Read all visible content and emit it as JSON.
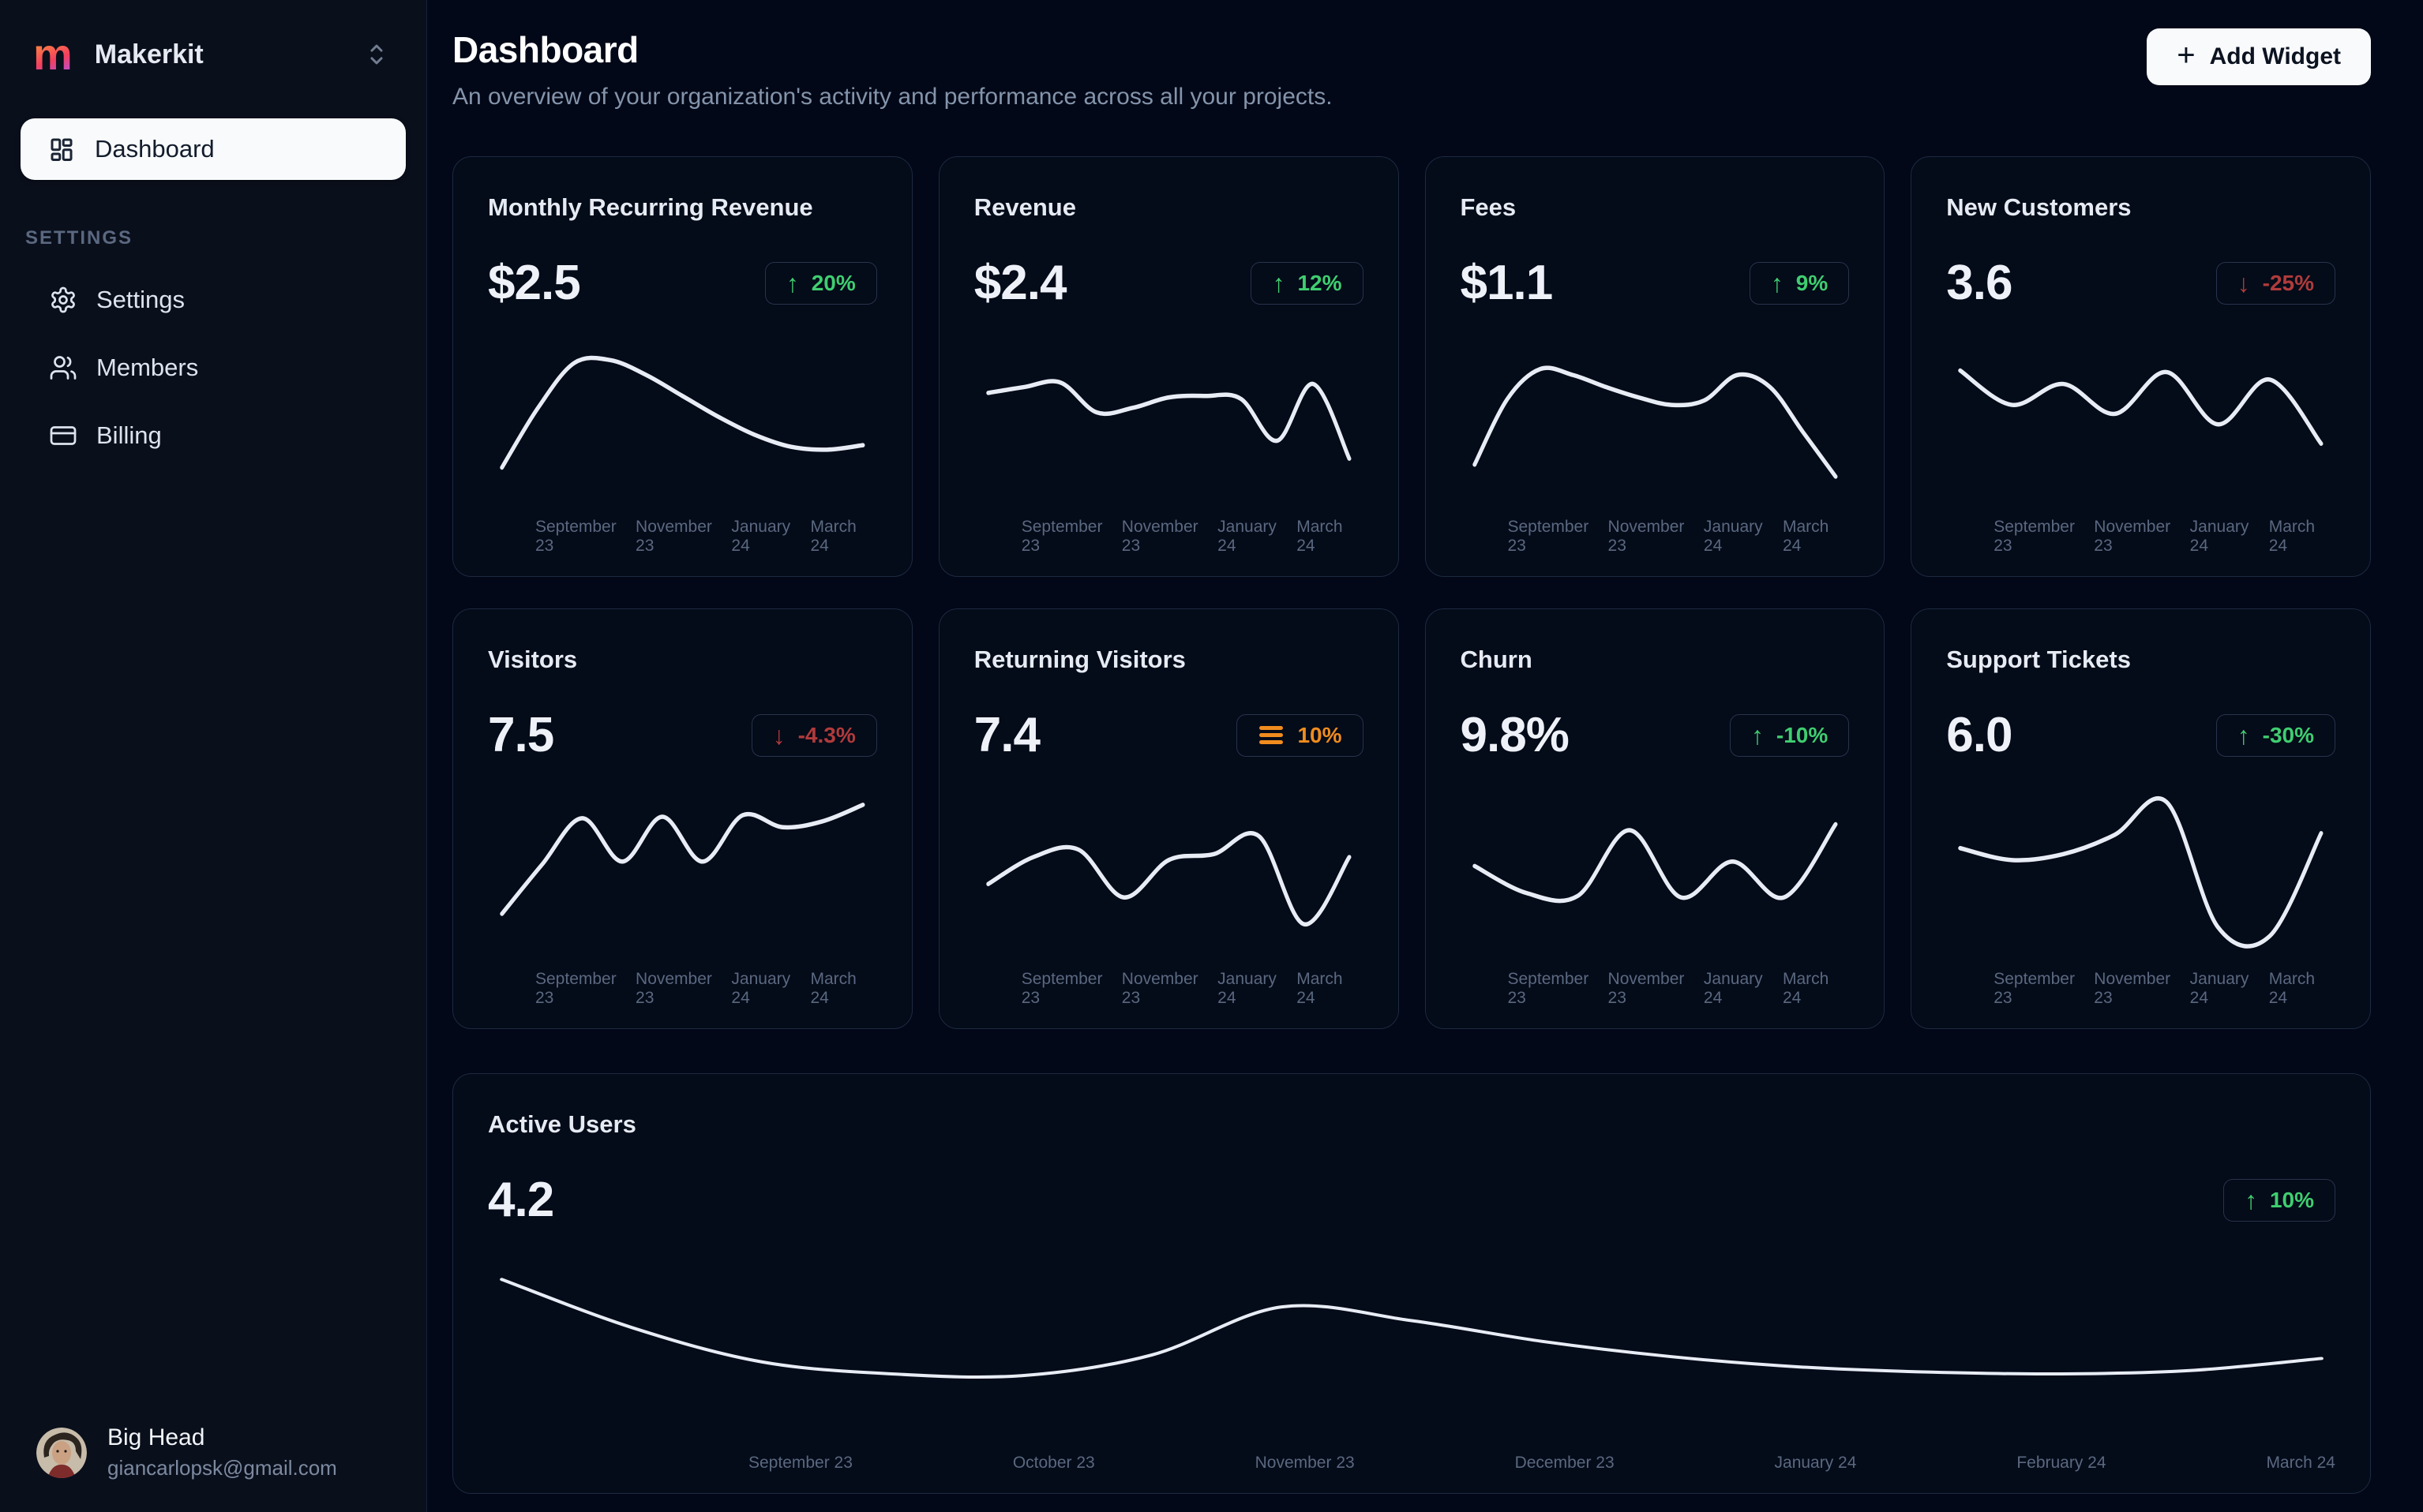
{
  "brand": {
    "name": "Makerkit",
    "logo_letter": "m"
  },
  "sidebar": {
    "nav_dashboard": "Dashboard",
    "section_label": "SETTINGS",
    "items": [
      {
        "label": "Settings"
      },
      {
        "label": "Members"
      },
      {
        "label": "Billing"
      }
    ],
    "user": {
      "name": "Big Head",
      "email": "giancarlopsk@gmail.com"
    }
  },
  "header": {
    "title": "Dashboard",
    "subtitle": "An overview of your organization's activity and performance across all your projects.",
    "add_widget": "Add Widget"
  },
  "colors": {
    "positive": "#3fce70",
    "negative": "#b03b3b",
    "neutral": "#f08c1e",
    "line": "#e8edf5",
    "active_nav_bg": "#f8fafc"
  },
  "months": [
    "September 23",
    "November 23",
    "January 24",
    "March 24"
  ],
  "months_wide": [
    "September 23",
    "October 23",
    "November 23",
    "December 23",
    "January 24",
    "February 24",
    "March 24"
  ],
  "cards": [
    {
      "title": "Monthly Recurring Revenue",
      "value": "$2.5",
      "trend": {
        "direction": "up",
        "label": "20%"
      }
    },
    {
      "title": "Revenue",
      "value": "$2.4",
      "trend": {
        "direction": "up",
        "label": "12%"
      }
    },
    {
      "title": "Fees",
      "value": "$1.1",
      "trend": {
        "direction": "up",
        "label": "9%"
      }
    },
    {
      "title": "New Customers",
      "value": "3.6",
      "trend": {
        "direction": "down",
        "label": "-25%"
      }
    },
    {
      "title": "Visitors",
      "value": "7.5",
      "trend": {
        "direction": "down",
        "label": "-4.3%"
      }
    },
    {
      "title": "Returning Visitors",
      "value": "7.4",
      "trend": {
        "direction": "flat",
        "label": "10%"
      }
    },
    {
      "title": "Churn",
      "value": "9.8%",
      "trend": {
        "direction": "up",
        "label": "-10%"
      }
    },
    {
      "title": "Support Tickets",
      "value": "6.0",
      "trend": {
        "direction": "up",
        "label": "-30%"
      }
    }
  ],
  "active_users": {
    "title": "Active Users",
    "value": "4.2",
    "trend": {
      "direction": "up",
      "label": "10%"
    }
  },
  "chart_data": [
    {
      "type": "line",
      "title": "Monthly Recurring Revenue sparkline",
      "x_range": [
        "September 23",
        "March 24"
      ],
      "x_ticks": [
        "September 23",
        "November 23",
        "January 24",
        "March 24"
      ],
      "y_axis": "hidden (relative 0-100)",
      "values": [
        18,
        58,
        88,
        90,
        80,
        66,
        52,
        40,
        32,
        30,
        33
      ]
    },
    {
      "type": "line",
      "title": "Revenue sparkline",
      "x_range": [
        "September 23",
        "March 24"
      ],
      "x_ticks": [
        "September 23",
        "November 23",
        "January 24",
        "March 24"
      ],
      "y_axis": "hidden (relative 0-100)",
      "values": [
        68,
        72,
        75,
        55,
        58,
        65,
        66,
        64,
        36,
        74,
        24
      ]
    },
    {
      "type": "line",
      "title": "Fees sparkline",
      "x_range": [
        "September 23",
        "March 24"
      ],
      "x_ticks": [
        "September 23",
        "November 23",
        "January 24",
        "March 24"
      ],
      "y_axis": "hidden (relative 0-100)",
      "values": [
        20,
        64,
        84,
        80,
        72,
        65,
        60,
        63,
        80,
        72,
        42,
        12
      ]
    },
    {
      "type": "line",
      "title": "New Customers sparkline",
      "x_range": [
        "September 23",
        "March 24"
      ],
      "x_ticks": [
        "September 23",
        "November 23",
        "January 24",
        "March 24"
      ],
      "y_axis": "hidden (relative 0-100)",
      "values": [
        83,
        60,
        74,
        54,
        82,
        47,
        77,
        34
      ]
    },
    {
      "type": "line",
      "title": "Visitors sparkline",
      "x_range": [
        "September 23",
        "March 24"
      ],
      "x_ticks": [
        "September 23",
        "November 23",
        "January 24",
        "March 24"
      ],
      "y_axis": "hidden (relative 0-100)",
      "values": [
        22,
        55,
        86,
        57,
        87,
        57,
        88,
        80,
        84,
        95
      ]
    },
    {
      "type": "line",
      "title": "Returning Visitors sparkline",
      "x_range": [
        "September 23",
        "March 24"
      ],
      "x_ticks": [
        "September 23",
        "November 23",
        "January 24",
        "March 24"
      ],
      "y_axis": "hidden (relative 0-100)",
      "values": [
        42,
        60,
        65,
        33,
        58,
        62,
        74,
        15,
        60
      ]
    },
    {
      "type": "line",
      "title": "Churn sparkline",
      "x_range": [
        "September 23",
        "March 24"
      ],
      "x_ticks": [
        "September 23",
        "November 23",
        "January 24",
        "March 24"
      ],
      "y_axis": "hidden (relative 0-100)",
      "values": [
        54,
        36,
        34,
        78,
        33,
        57,
        33,
        82
      ]
    },
    {
      "type": "line",
      "title": "Support Tickets sparkline",
      "x_range": [
        "September 23",
        "March 24"
      ],
      "x_ticks": [
        "September 23",
        "November 23",
        "January 24",
        "March 24"
      ],
      "y_axis": "hidden (relative 0-100)",
      "values": [
        66,
        58,
        62,
        75,
        97,
        13,
        7,
        76
      ]
    },
    {
      "type": "line",
      "title": "Active Users",
      "x_range": [
        "September 23",
        "March 24"
      ],
      "x_ticks": [
        "September 23",
        "October 23",
        "November 23",
        "December 23",
        "January 24",
        "February 24",
        "March 24"
      ],
      "y_axis": "hidden (relative 0-100)",
      "values": [
        88,
        60,
        40,
        33,
        32,
        44,
        72,
        64,
        52,
        43,
        37,
        34,
        33,
        35,
        42
      ]
    }
  ]
}
